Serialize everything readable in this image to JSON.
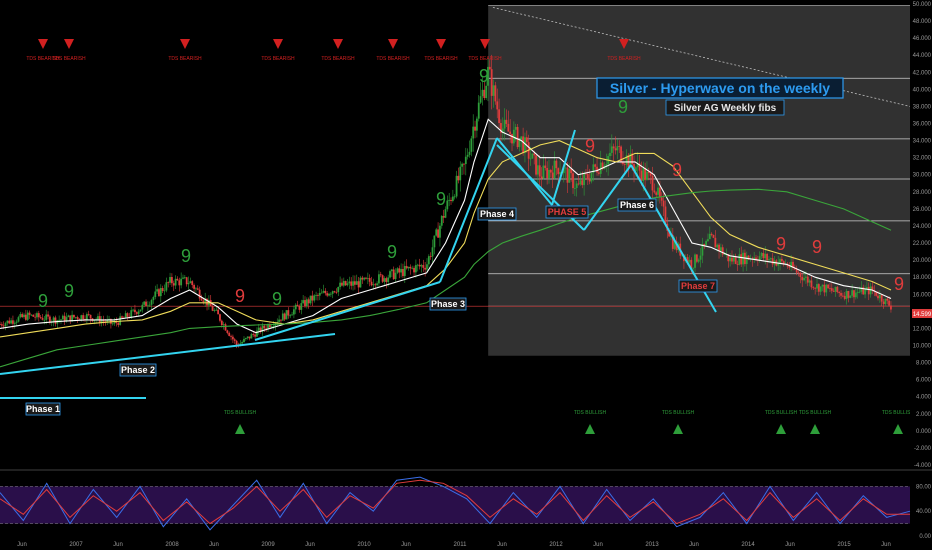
{
  "chart": {
    "title": "Silver - Hyperwave on the weekly",
    "subtitle": "Silver AG Weekly fibs",
    "current_price": "14.599",
    "colors": {
      "background": "#000000",
      "fib_panel": "#3a3a3a",
      "hyperwave_line": "#33d4f0",
      "ma_fast": "#ffffff",
      "ma_mid": "#f0dc5a",
      "ma_slow": "#3aa53a",
      "bull_candle": "#2e9e3a",
      "bear_candle": "#e03c3c",
      "sell_marker": "#d22020",
      "buy_marker": "#2e9e3a",
      "title": "#2d9bf0",
      "oscillator_bg": "#2a0f4a"
    }
  },
  "chart_data": [
    {
      "type": "line",
      "title": "Silver - Hyperwave on the weekly",
      "subtitle": "Silver AG Weekly fibs",
      "xlabel": "",
      "ylabel": "",
      "ylim": [
        -4,
        50
      ],
      "y_ticks": [
        "50.000",
        "48.000",
        "46.000",
        "44.000",
        "42.000",
        "40.000",
        "38.000",
        "36.000",
        "34.000",
        "32.000",
        "30.000",
        "28.000",
        "26.000",
        "24.000",
        "22.000",
        "20.000",
        "18.000",
        "16.000",
        "14.000",
        "12.000",
        "10.000",
        "8.000",
        "6.000",
        "4.000",
        "2.000",
        "0.000",
        "-2.000",
        "-4.000"
      ],
      "x_ticks": [
        "Jun",
        "2007",
        "Jun",
        "2008",
        "Jun",
        "2009",
        "Jun",
        "2010",
        "Jun",
        "2011",
        "Jun",
        "2012",
        "Jun",
        "2013",
        "Jun",
        "2014",
        "Jun",
        "2015",
        "Jun"
      ],
      "x": [
        2006.3,
        2006.6,
        2006.9,
        2007.2,
        2007.5,
        2007.8,
        2008.1,
        2008.3,
        2008.6,
        2008.8,
        2009.0,
        2009.3,
        2009.6,
        2009.9,
        2010.2,
        2010.5,
        2010.8,
        2011.0,
        2011.2,
        2011.3,
        2011.45,
        2011.6,
        2011.8,
        2012.0,
        2012.2,
        2012.4,
        2012.6,
        2012.8,
        2013.0,
        2013.2,
        2013.4,
        2013.6,
        2013.8,
        2014.0,
        2014.3,
        2014.6,
        2014.9,
        2015.2,
        2015.5,
        2015.7
      ],
      "series": [
        {
          "type": "candlestick",
          "values": [
            12.5,
            13.5,
            13.0,
            13.5,
            12.5,
            14.5,
            17.5,
            17.5,
            13.5,
            10.0,
            11.5,
            13.5,
            15.5,
            17.0,
            17.5,
            18.5,
            19.5,
            26.0,
            31.0,
            36.0,
            42.0,
            35.5,
            34.0,
            30.0,
            31.0,
            28.5,
            31.0,
            33.0,
            31.0,
            29.0,
            22.0,
            19.5,
            22.5,
            20.0,
            20.5,
            19.5,
            17.0,
            16.0,
            16.5,
            14.6
          ]
        },
        {
          "type": "line",
          "values": [
            12.0,
            12.5,
            12.8,
            13.0,
            13.0,
            13.5,
            15.5,
            16.5,
            14.5,
            12.5,
            11.5,
            12.5,
            13.5,
            15.5,
            16.5,
            17.5,
            18.5,
            22.0,
            27.0,
            31.5,
            36.5,
            35.0,
            34.0,
            32.0,
            32.0,
            30.0,
            30.5,
            31.5,
            31.5,
            30.0,
            26.0,
            22.0,
            21.5,
            20.5,
            20.0,
            19.5,
            18.0,
            17.0,
            16.5,
            15.5
          ]
        },
        {
          "type": "line",
          "values": [
            11.0,
            11.5,
            12.0,
            12.5,
            12.8,
            13.0,
            14.0,
            15.0,
            15.0,
            14.0,
            13.0,
            12.5,
            13.0,
            14.0,
            15.0,
            16.0,
            17.0,
            19.0,
            22.0,
            25.5,
            29.5,
            31.5,
            32.5,
            33.5,
            34.0,
            33.0,
            32.0,
            31.5,
            32.5,
            32.5,
            31.0,
            28.0,
            25.0,
            23.0,
            21.5,
            20.5,
            19.5,
            18.5,
            17.5,
            16.5
          ]
        },
        {
          "type": "line",
          "values": [
            7.5,
            8.5,
            9.5,
            10.0,
            10.5,
            11.0,
            11.5,
            12.0,
            12.2,
            12.3,
            12.4,
            12.5,
            12.7,
            13.0,
            13.5,
            14.2,
            15.0,
            16.5,
            18.0,
            19.5,
            21.0,
            22.0,
            22.8,
            23.5,
            24.3,
            25.0,
            25.6,
            26.2,
            26.8,
            27.3,
            27.6,
            27.9,
            28.1,
            28.2,
            28.3,
            28.0,
            27.0,
            26.0,
            24.5,
            23.5
          ]
        }
      ]
    },
    {
      "type": "line",
      "ylim": [
        0,
        100
      ],
      "y_ticks": [
        "80.00",
        "40.00",
        "0.00"
      ],
      "series": [
        {
          "type": "line",
          "values": [
            70,
            25,
            85,
            20,
            75,
            30,
            80,
            15,
            60,
            10,
            50,
            90,
            30,
            85,
            20,
            70,
            40,
            90,
            95,
            80,
            60,
            20,
            70,
            30,
            80,
            20,
            75,
            25,
            60,
            15,
            30,
            70,
            20,
            80,
            25,
            70,
            20,
            65,
            30,
            40
          ]
        },
        {
          "type": "line",
          "values": [
            60,
            35,
            75,
            30,
            65,
            40,
            70,
            25,
            55,
            20,
            45,
            80,
            40,
            75,
            30,
            65,
            45,
            85,
            90,
            85,
            65,
            30,
            60,
            35,
            70,
            25,
            65,
            30,
            55,
            20,
            35,
            60,
            25,
            70,
            30,
            60,
            25,
            60,
            35,
            35
          ]
        }
      ]
    }
  ],
  "annotations": {
    "phases": [
      "Phase 1",
      "Phase 2",
      "Phase 3",
      "Phase 4",
      "PHASE 5",
      "Phase 6",
      "Phase 7"
    ],
    "sell_signal": "TDS BEARISH",
    "buy_signal": "TDS BULLISH",
    "nine": "9"
  }
}
